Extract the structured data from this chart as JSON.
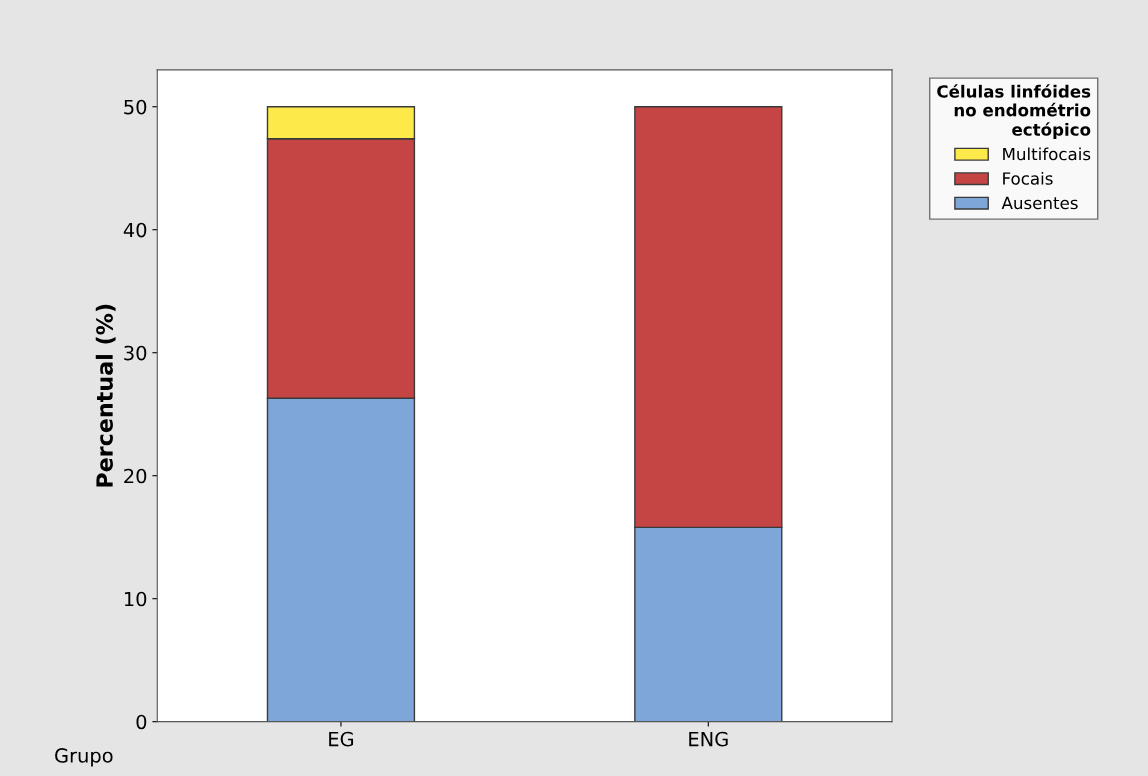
{
  "chart_data": {
    "type": "bar",
    "stacked": true,
    "xlabel": "Grupo",
    "ylabel": "Percentual (%)",
    "legend_title": "Células linfóides\nno endométrio\nectópico",
    "categories": [
      "EG",
      "ENG"
    ],
    "series": [
      {
        "name": "Ausentes",
        "color": "#7ea6d8",
        "values": [
          26.3,
          15.8
        ]
      },
      {
        "name": "Focais",
        "color": "#c54544",
        "values": [
          21.1,
          34.2
        ]
      },
      {
        "name": "Multifocais",
        "color": "#fee94a",
        "values": [
          2.6,
          null
        ]
      }
    ],
    "ylim": [
      0,
      53
    ],
    "yticks": [
      0,
      10,
      20,
      30,
      40,
      50
    ],
    "grid": false,
    "legend": "top right"
  }
}
